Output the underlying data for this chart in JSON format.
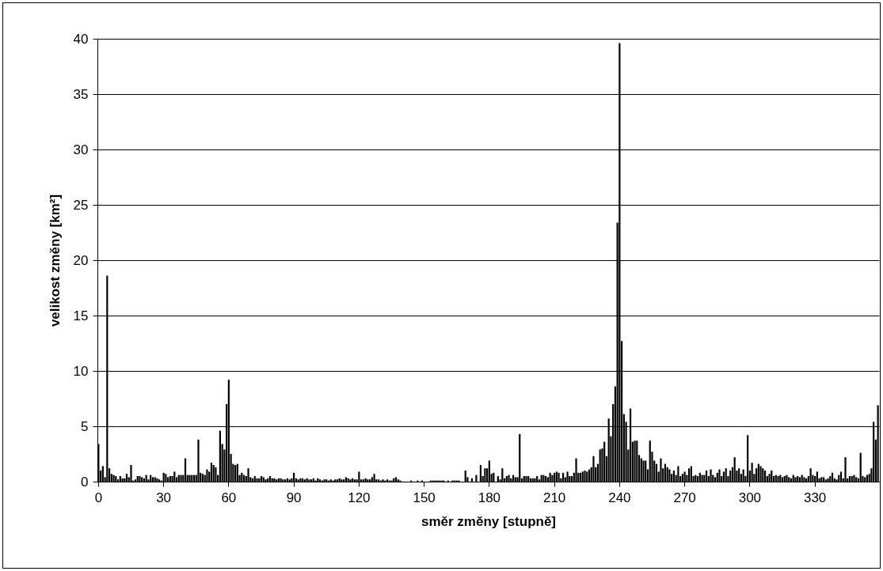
{
  "chart_data": {
    "type": "bar",
    "xlabel": "směr změny [stupně]",
    "ylabel": "velikost změny [km²]",
    "categories": [
      "0",
      null,
      null,
      null,
      null,
      null,
      null,
      null,
      null,
      null,
      null,
      null,
      null,
      null,
      null,
      null,
      null,
      null,
      null,
      null,
      null,
      null,
      null,
      null,
      null,
      null,
      null,
      null,
      null,
      null,
      "30",
      null,
      null,
      null,
      null,
      null,
      null,
      null,
      null,
      null,
      null,
      null,
      null,
      null,
      null,
      null,
      null,
      null,
      null,
      null,
      null,
      null,
      null,
      null,
      null,
      null,
      null,
      null,
      null,
      null,
      "60",
      null,
      null,
      null,
      null,
      null,
      null,
      null,
      null,
      null,
      null,
      null,
      null,
      null,
      null,
      null,
      null,
      null,
      null,
      null,
      null,
      null,
      null,
      null,
      null,
      null,
      null,
      null,
      null,
      null,
      "90",
      null,
      null,
      null,
      null,
      null,
      null,
      null,
      null,
      null,
      null,
      null,
      null,
      null,
      null,
      null,
      null,
      null,
      null,
      null,
      null,
      null,
      null,
      null,
      null,
      null,
      null,
      null,
      null,
      null,
      "120",
      null,
      null,
      null,
      null,
      null,
      null,
      null,
      null,
      null,
      null,
      null,
      null,
      null,
      null,
      null,
      null,
      null,
      null,
      null,
      null,
      null,
      null,
      null,
      null,
      null,
      null,
      null,
      null,
      null,
      "150",
      null,
      null,
      null,
      null,
      null,
      null,
      null,
      null,
      null,
      null,
      null,
      null,
      null,
      null,
      null,
      null,
      null,
      null,
      null,
      null,
      null,
      null,
      null,
      null,
      null,
      null,
      null,
      null,
      null,
      "180",
      null,
      null,
      null,
      null,
      null,
      null,
      null,
      null,
      null,
      null,
      null,
      null,
      null,
      null,
      null,
      null,
      null,
      null,
      null,
      null,
      null,
      null,
      null,
      null,
      null,
      null,
      null,
      null,
      null,
      "210",
      null,
      null,
      null,
      null,
      null,
      null,
      null,
      null,
      null,
      null,
      null,
      null,
      null,
      null,
      null,
      null,
      null,
      null,
      null,
      null,
      null,
      null,
      null,
      null,
      null,
      null,
      null,
      null,
      null,
      "240",
      null,
      null,
      null,
      null,
      null,
      null,
      null,
      null,
      null,
      null,
      null,
      null,
      null,
      null,
      null,
      null,
      null,
      null,
      null,
      null,
      null,
      null,
      null,
      null,
      null,
      null,
      null,
      null,
      null,
      "270",
      null,
      null,
      null,
      null,
      null,
      null,
      null,
      null,
      null,
      null,
      null,
      null,
      null,
      null,
      null,
      null,
      null,
      null,
      null,
      null,
      null,
      null,
      null,
      null,
      null,
      null,
      null,
      null,
      null,
      "300",
      null,
      null,
      null,
      null,
      null,
      null,
      null,
      null,
      null,
      null,
      null,
      null,
      null,
      null,
      null,
      null,
      null,
      null,
      null,
      null,
      null,
      null,
      null,
      null,
      null,
      null,
      null,
      null,
      null,
      "330",
      null,
      null,
      null,
      null,
      null,
      null,
      null,
      null,
      null,
      null,
      null,
      null,
      null,
      null,
      null,
      null,
      null,
      null,
      null,
      null,
      null,
      null,
      null,
      null,
      null,
      null,
      null,
      null,
      null
    ],
    "values": [
      3.4,
      1.0,
      1.4,
      0.4,
      18.6,
      1.2,
      0.7,
      0.6,
      0.5,
      0.2,
      0.5,
      0.3,
      0.3,
      0.7,
      0.4,
      1.5,
      0.1,
      0.2,
      0.5,
      0.5,
      0.4,
      0.3,
      0.6,
      0.2,
      0.6,
      0.4,
      0.4,
      0.3,
      0.2,
      0.1,
      0.8,
      0.7,
      0.4,
      0.5,
      0.5,
      0.9,
      0.4,
      0.6,
      0.6,
      0.6,
      2.1,
      0.6,
      0.6,
      0.6,
      0.6,
      0.6,
      3.8,
      0.8,
      0.7,
      0.6,
      1.1,
      0.9,
      1.7,
      1.5,
      1.3,
      0.6,
      4.6,
      3.4,
      2.9,
      7.0,
      9.2,
      2.5,
      1.6,
      1.5,
      1.6,
      0.6,
      0.8,
      0.6,
      0.5,
      1.2,
      0.4,
      0.3,
      0.5,
      0.3,
      0.3,
      0.5,
      0.4,
      0.2,
      0.3,
      0.5,
      0.3,
      0.3,
      0.2,
      0.3,
      0.3,
      0.2,
      0.2,
      0.3,
      0.2,
      0.3,
      0.8,
      0.3,
      0.2,
      0.3,
      0.3,
      0.2,
      0.3,
      0.2,
      0.2,
      0.3,
      0.1,
      0.3,
      0.2,
      0.1,
      0.2,
      0.2,
      0.1,
      0.2,
      0.1,
      0.2,
      0.2,
      0.3,
      0.2,
      0.2,
      0.4,
      0.3,
      0.2,
      0.3,
      0.2,
      0.2,
      0.9,
      0.2,
      0.2,
      0.3,
      0.2,
      0.2,
      0.4,
      0.7,
      0.2,
      0.2,
      0.1,
      0.2,
      0.1,
      0.2,
      0.1,
      0.1,
      0.3,
      0.4,
      0.2,
      0.1,
      0,
      0,
      0,
      0,
      0.1,
      0,
      0,
      0.1,
      0,
      0.1,
      0,
      0,
      0,
      0.1,
      0.1,
      0.1,
      0.1,
      0.1,
      0.1,
      0.1,
      0,
      0.1,
      0,
      0.1,
      0.1,
      0.1,
      0.1,
      0,
      0,
      1.0,
      0.4,
      0,
      0.3,
      0,
      0.6,
      0,
      1.5,
      0.5,
      1.2,
      1.2,
      1.9,
      0.7,
      0.8,
      0,
      0.5,
      0.2,
      1.2,
      0.3,
      0.5,
      0.6,
      0.3,
      0.6,
      0.4,
      0.4,
      4.3,
      0.3,
      0.5,
      0.5,
      0.5,
      0.3,
      0.3,
      0.3,
      0.5,
      0.2,
      0.6,
      0.6,
      0.5,
      0.4,
      0.8,
      0.6,
      0.8,
      0.9,
      0.8,
      0.3,
      0.8,
      0.4,
      0.9,
      0.5,
      0.5,
      0.8,
      2.1,
      0.8,
      0.8,
      0.9,
      1.0,
      0.9,
      1.1,
      1.3,
      2.3,
      1.3,
      1.6,
      2.9,
      3.0,
      3.6,
      2.3,
      5.7,
      4.1,
      7.0,
      8.6,
      23.4,
      39.6,
      12.7,
      6.1,
      5.4,
      2.9,
      6.6,
      3.6,
      3.7,
      3.7,
      2.4,
      2.1,
      1.9,
      1.9,
      1.1,
      3.7,
      2.7,
      1.9,
      1.6,
      0.9,
      2.1,
      1.2,
      1.6,
      1.3,
      1.1,
      0.7,
      1.0,
      0.6,
      1.4,
      0.5,
      0.7,
      0.9,
      0.6,
      1.2,
      1.4,
      0.5,
      0.6,
      0.5,
      0.8,
      0.6,
      0.6,
      1.0,
      0.5,
      1.1,
      0.6,
      0.4,
      0.8,
      1.1,
      0.5,
      0.9,
      1.2,
      0.5,
      1.0,
      1.3,
      2.2,
      1.0,
      1.2,
      0.7,
      1.1,
      0.5,
      4.2,
      1.0,
      1.7,
      0.7,
      1.2,
      1.6,
      1.4,
      1.2,
      1.0,
      0.5,
      0.7,
      1.0,
      0.5,
      0.6,
      0.5,
      0.6,
      0.4,
      0.5,
      0.6,
      0.4,
      0.3,
      0.6,
      0.4,
      0.5,
      0.4,
      0.6,
      0.4,
      0.3,
      0.5,
      1.2,
      0.6,
      0.5,
      0.9,
      0.3,
      0.4,
      0.4,
      0.2,
      0.3,
      0.5,
      0.8,
      0.3,
      0.2,
      0.6,
      0.9,
      0.3,
      2.2,
      0.3,
      0.5,
      0.5,
      0.6,
      0.4,
      0.3,
      2.6,
      0.5,
      0.4,
      0.6,
      0.7,
      1.2,
      5.4,
      3.8,
      6.9
    ],
    "color": "#000000",
    "ylim": [
      0,
      40
    ],
    "yticks": [
      0,
      5,
      10,
      15,
      20,
      25,
      30,
      35,
      40
    ],
    "grid": "y"
  }
}
